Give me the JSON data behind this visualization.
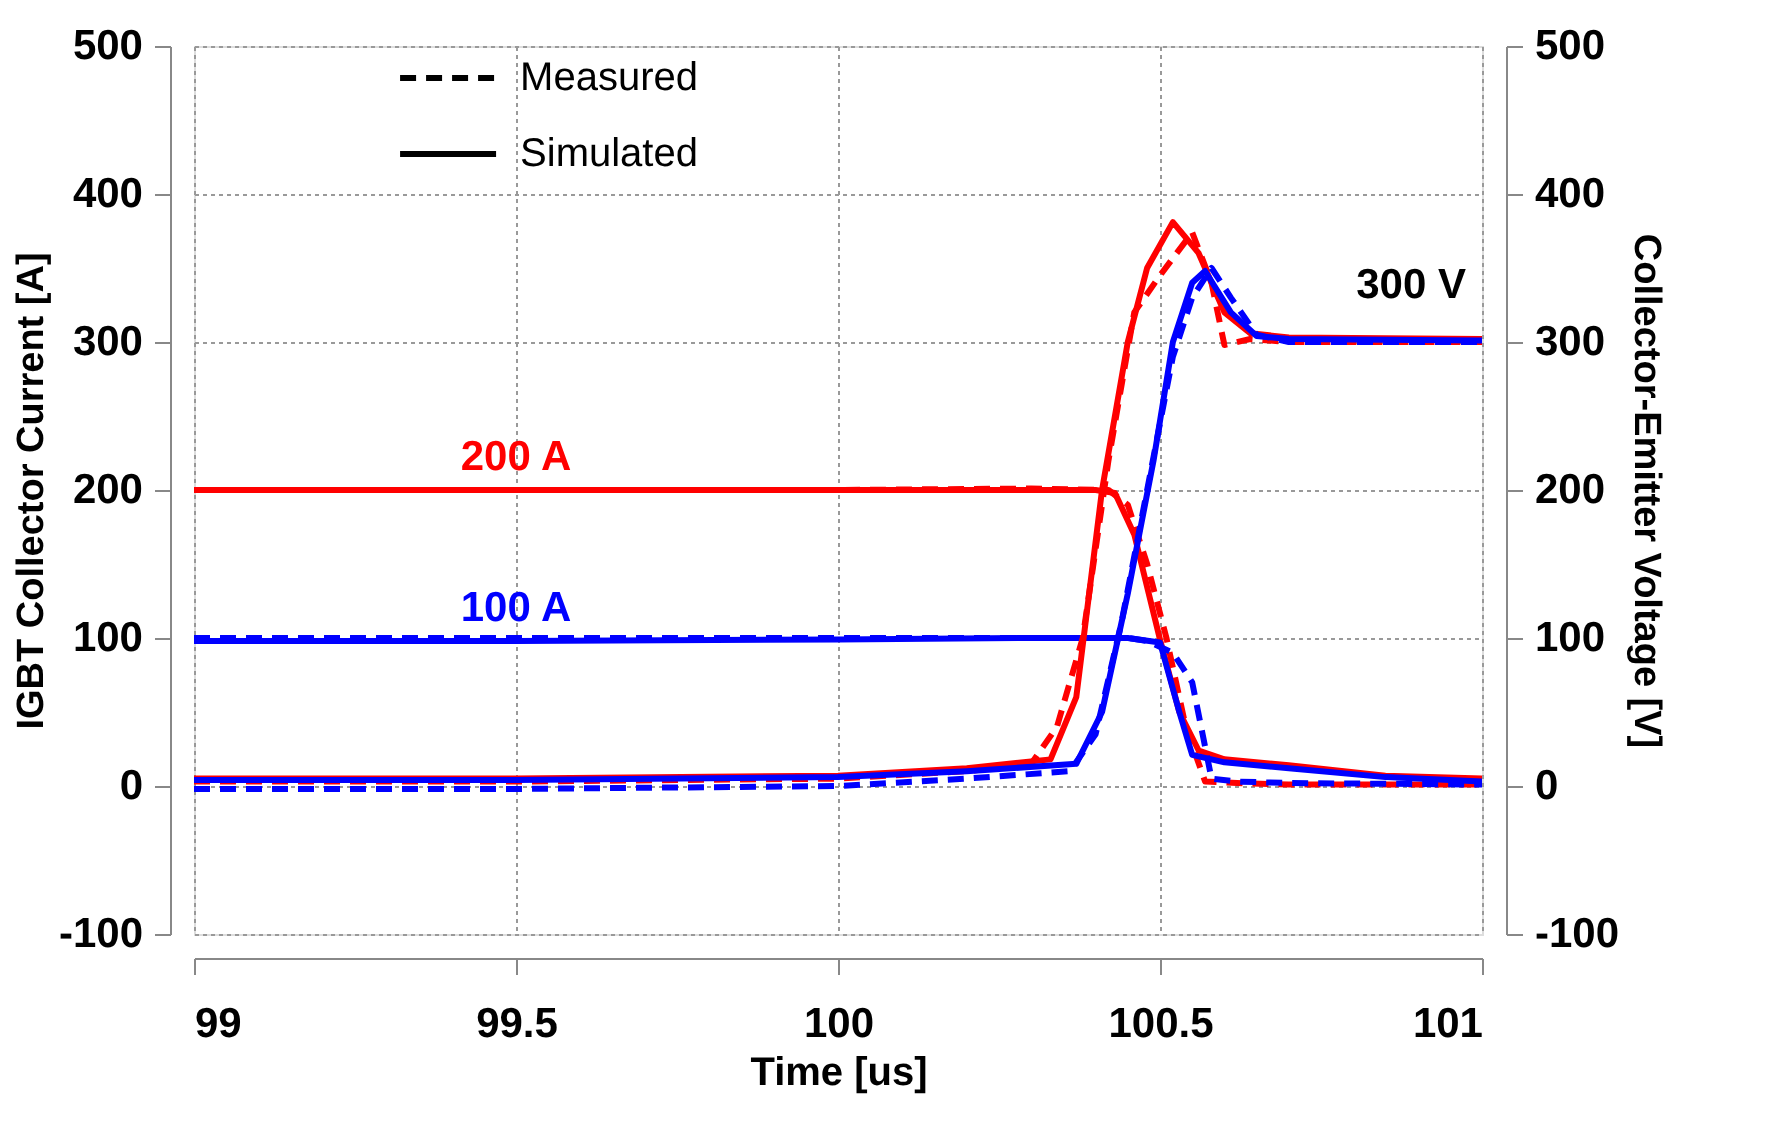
{
  "chart_data": {
    "type": "line",
    "xlabel": "Time [us]",
    "ylabel": "IGBT Collector Current [A]",
    "y2label": "Collector-Emitter Voltage [V]",
    "xlim": [
      99,
      101
    ],
    "xticks": [
      99,
      99.5,
      100,
      100.5,
      101
    ],
    "ylim": [
      -100,
      500
    ],
    "yticks": [
      -100,
      0,
      100,
      200,
      300,
      400,
      500
    ],
    "y2lim": [
      -100,
      500
    ],
    "y2ticks": [
      -100,
      0,
      100,
      200,
      300,
      400,
      500
    ],
    "grid": true,
    "marker": "none",
    "annotations": [
      "Measured",
      "Simulated",
      "300 V"
    ],
    "series": [
      {
        "color": "#ff0000",
        "line_style": "dashed",
        "x": [
          99,
          99.5,
          100,
          100.3,
          100.42,
          100.45,
          100.48,
          100.51,
          100.54,
          100.57,
          100.62,
          100.7,
          101
        ],
        "values": [
          200,
          200,
          200,
          201,
          200,
          190,
          150,
          100,
          40,
          3,
          2,
          1,
          1
        ]
      },
      {
        "name": "200 A",
        "color": "#ff0000",
        "line_style": "solid",
        "x": [
          99,
          99.5,
          100,
          100.3,
          100.4,
          100.43,
          100.46,
          100.5,
          100.53,
          100.56,
          100.6,
          100.7,
          100.85,
          101
        ],
        "values": [
          200,
          200,
          200,
          200,
          200,
          198,
          170,
          99,
          50,
          24,
          18,
          14,
          7,
          5
        ]
      },
      {
        "color": "#0000ff",
        "line_style": "dashed",
        "x": [
          99,
          99.5,
          100,
          100.3,
          100.45,
          100.48,
          100.52,
          100.55,
          100.58,
          100.62,
          100.7,
          101
        ],
        "values": [
          100,
          100,
          100,
          100,
          100,
          98,
          90,
          70,
          5,
          3,
          2,
          1
        ]
      },
      {
        "name": "100 A",
        "color": "#0000ff",
        "line_style": "solid",
        "x": [
          99,
          99.5,
          100,
          100.3,
          100.45,
          100.5,
          100.53,
          100.55,
          100.6,
          100.7,
          100.85,
          101
        ],
        "values": [
          98,
          98,
          99,
          100,
          100,
          97,
          50,
          21,
          16,
          12,
          6,
          3
        ]
      },
      {
        "color": "#ff0000",
        "line_style": "dashed",
        "axis": "y2",
        "x": [
          99,
          99.5,
          100,
          100.2,
          100.3,
          100.34,
          100.38,
          100.42,
          100.46,
          100.5,
          100.55,
          100.58,
          100.6,
          100.64,
          100.7,
          101
        ],
        "values": [
          3,
          3,
          5,
          10,
          15,
          40,
          100,
          220,
          320,
          345,
          374,
          340,
          298,
          302,
          300,
          300
        ]
      },
      {
        "color": "#ff0000",
        "line_style": "solid",
        "axis": "y2",
        "x": [
          99,
          99.5,
          100,
          100.2,
          100.33,
          100.37,
          100.41,
          100.45,
          100.48,
          100.52,
          100.56,
          100.6,
          100.64,
          100.7,
          101
        ],
        "values": [
          5,
          5,
          7,
          12,
          18,
          60,
          200,
          300,
          350,
          381,
          360,
          320,
          306,
          303,
          302
        ]
      },
      {
        "color": "#0000ff",
        "line_style": "dashed",
        "axis": "y2",
        "x": [
          99,
          99.5,
          100,
          100.2,
          100.36,
          100.4,
          100.44,
          100.48,
          100.52,
          100.55,
          100.58,
          100.61,
          100.65,
          100.7,
          101
        ],
        "values": [
          -2,
          -2,
          0,
          5,
          10,
          35,
          110,
          200,
          290,
          330,
          350,
          330,
          305,
          300,
          300
        ]
      },
      {
        "color": "#0000ff",
        "line_style": "solid",
        "axis": "y2",
        "x": [
          99,
          99.5,
          100,
          100.2,
          100.37,
          100.41,
          100.45,
          100.49,
          100.52,
          100.55,
          100.57,
          100.61,
          100.65,
          100.7,
          101
        ],
        "values": [
          4,
          4,
          6,
          10,
          15,
          50,
          130,
          220,
          300,
          340,
          348,
          320,
          304,
          302,
          301
        ]
      }
    ]
  }
}
